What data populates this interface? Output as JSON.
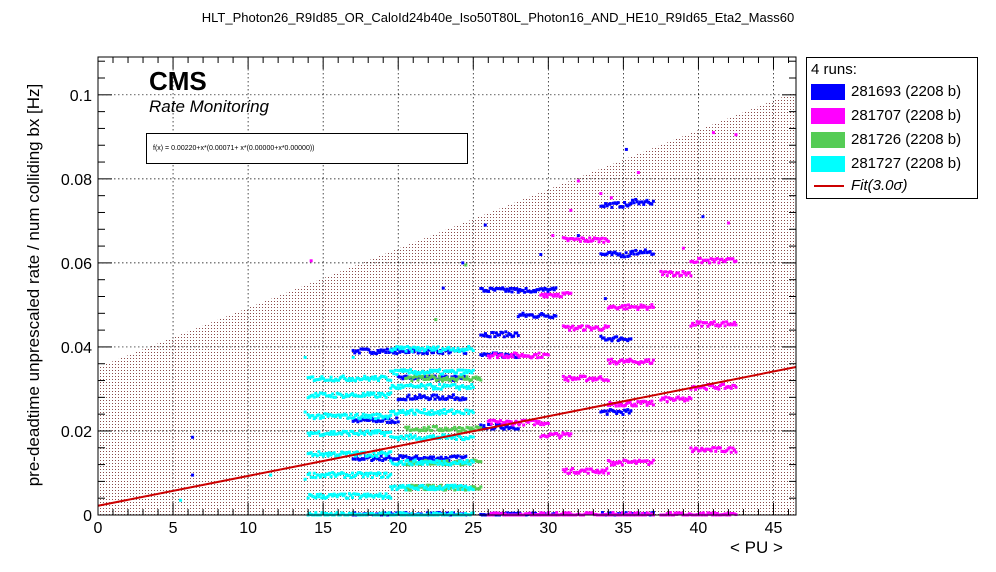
{
  "title": "HLT_Photon26_R9Id85_OR_CaloId24b40e_Iso50T80L_Photon16_AND_HE10_R9Id65_Eta2_Mass60",
  "branding": {
    "experiment": "CMS",
    "subtitle": "Rate Monitoring"
  },
  "fit_formula": "f(x) = 0.00220+x*(0.00071+ x*(0.00000+x*0.00000))",
  "legend": {
    "header": "4 runs:",
    "entries": [
      {
        "label": "281693 (2208 b)",
        "color": "#0000ff",
        "kind": "box"
      },
      {
        "label": "281707 (2208 b)",
        "color": "#ff00ff",
        "kind": "box"
      },
      {
        "label": "281726 (2208 b)",
        "color": "#55cc55",
        "kind": "box"
      },
      {
        "label": "281727 (2208 b)",
        "color": "#00ffff",
        "kind": "box"
      },
      {
        "label": "Fit(3.0σ)",
        "color": "#cc0000",
        "kind": "line"
      }
    ]
  },
  "chart_data": {
    "type": "scatter",
    "xlabel": "< PU >",
    "ylabel": "pre-deadtime unprescaled rate / num colliding bx [Hz]",
    "xlim": [
      0,
      46.5
    ],
    "ylim": [
      0,
      0.109
    ],
    "x_ticks": [
      0,
      5,
      10,
      15,
      20,
      25,
      30,
      35,
      40,
      45
    ],
    "y_ticks": [
      0,
      0.02,
      0.04,
      0.06,
      0.08,
      0.1
    ],
    "y_tick_labels": [
      "0",
      "0.02",
      "0.04",
      "0.06",
      "0.08",
      "0.1"
    ],
    "grid": true,
    "fit": {
      "intercept": 0.0022,
      "slope": 0.00071,
      "color": "#cc0000"
    },
    "band": {
      "center_intercept": 0.0022,
      "center_slope": 0.00071,
      "half_width_intercept": 0.033,
      "half_width_slope": 0.0007,
      "fill": "#8b4a4a"
    },
    "series": [
      {
        "name": "281693 (2208 b)",
        "color": "#0000ff",
        "clusters": [
          {
            "x0": 17.0,
            "x1": 20.0,
            "ys": [
              0.0,
              0.0135,
              0.0225,
              0.039
            ]
          },
          {
            "x0": 20.0,
            "x1": 24.5,
            "ys": [
              0.0,
              0.0135,
              0.028,
              0.0325,
              0.039
            ]
          },
          {
            "x0": 25.5,
            "x1": 28.0,
            "ys": [
              0.0,
              0.021,
              0.038,
              0.043,
              0.0535
            ]
          },
          {
            "x0": 28.0,
            "x1": 30.5,
            "ys": [
              0.0,
              0.0475,
              0.0535
            ]
          },
          {
            "x0": 33.5,
            "x1": 35.5,
            "ys": [
              0.0,
              0.0245,
              0.042,
              0.062,
              0.0738
            ]
          },
          {
            "x0": 35.5,
            "x1": 37.0,
            "ys": [
              0.0,
              0.0625,
              0.0745
            ]
          }
        ],
        "points": [
          [
            6.3,
            0.0185
          ],
          [
            6.3,
            0.0095
          ],
          [
            25.8,
            0.069
          ],
          [
            23.0,
            0.054
          ],
          [
            29.5,
            0.062
          ],
          [
            32.0,
            0.0665
          ],
          [
            33.8,
            0.0515
          ],
          [
            40.3,
            0.071
          ],
          [
            35.2,
            0.087
          ],
          [
            24.3,
            0.06
          ]
        ]
      },
      {
        "name": "281707 (2208 b)",
        "color": "#ff00ff",
        "clusters": [
          {
            "x0": 26.0,
            "x1": 30.0,
            "ys": [
              0.0,
              0.022,
              0.038
            ]
          },
          {
            "x0": 29.5,
            "x1": 31.5,
            "ys": [
              0.0,
              0.019,
              0.0525
            ]
          },
          {
            "x0": 31.0,
            "x1": 34.0,
            "ys": [
              0.0,
              0.0105,
              0.0325,
              0.0445,
              0.0655
            ]
          },
          {
            "x0": 34.0,
            "x1": 37.0,
            "ys": [
              0.0,
              0.0125,
              0.0265,
              0.0365,
              0.0495
            ]
          },
          {
            "x0": 37.5,
            "x1": 39.5,
            "ys": [
              0.0,
              0.0275,
              0.0575
            ]
          },
          {
            "x0": 39.5,
            "x1": 42.5,
            "ys": [
              0.0,
              0.0155,
              0.0305,
              0.0455,
              0.0605
            ]
          }
        ],
        "points": [
          [
            14.2,
            0.0605
          ],
          [
            30.3,
            0.0665
          ],
          [
            32.0,
            0.0795
          ],
          [
            33.5,
            0.0765
          ],
          [
            34.2,
            0.0755
          ],
          [
            41.0,
            0.091
          ],
          [
            42.5,
            0.0905
          ],
          [
            42.0,
            0.0695
          ],
          [
            39.0,
            0.0635
          ],
          [
            36.0,
            0.0815
          ],
          [
            31.5,
            0.0725
          ]
        ]
      },
      {
        "name": "281726 (2208 b)",
        "color": "#55cc55",
        "clusters": [
          {
            "x0": 20.5,
            "x1": 25.5,
            "ys": [
              0.0065,
              0.0125,
              0.0205,
              0.0325
            ]
          }
        ],
        "points": [
          [
            24.5,
            0.0595
          ],
          [
            22.5,
            0.0465
          ]
        ]
      },
      {
        "name": "281727 (2208 b)",
        "color": "#00ffff",
        "clusters": [
          {
            "x0": 14.0,
            "x1": 19.5,
            "ys": [
              0.0,
              0.0045,
              0.0095,
              0.0145,
              0.0195,
              0.0235,
              0.0285,
              0.0325
            ]
          },
          {
            "x0": 19.5,
            "x1": 25.0,
            "ys": [
              0.0,
              0.0065,
              0.0125,
              0.0185,
              0.0245,
              0.0305,
              0.034,
              0.0395
            ]
          }
        ],
        "points": [
          [
            13.8,
            0.0375
          ],
          [
            13.8,
            0.0245
          ],
          [
            13.8,
            0.0085
          ],
          [
            5.5,
            0.0035
          ],
          [
            17.0,
            0.0375
          ],
          [
            11.5,
            0.0095
          ]
        ]
      }
    ]
  }
}
